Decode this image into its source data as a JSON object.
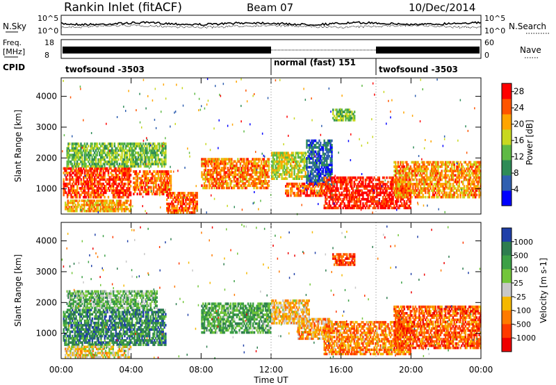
{
  "header": {
    "station": "Rankin Inlet (fitACF)",
    "beam": "Beam 07",
    "date": "10/Dec/2014"
  },
  "top_panels": {
    "nsky_label": "N.Sky",
    "nsearch_label": "N.Search",
    "nsky_ticks": [
      "10^5",
      "10^0"
    ],
    "freq_label_top": "Freq.",
    "freq_label_bottom": "[MHz]",
    "freq_ticks": [
      "18",
      "8"
    ],
    "nave_label": "Nave",
    "nave_ticks": [
      "60",
      "0"
    ],
    "cpid_label": "CPID",
    "cpid_segments": [
      {
        "start": 0,
        "end": 12,
        "label": "twofsound -3503"
      },
      {
        "start": 12,
        "end": 18,
        "label": "normal (fast) 151"
      },
      {
        "start": 18,
        "end": 24,
        "label": "twofsound -3503"
      }
    ]
  },
  "chart_data": [
    {
      "type": "heatmap",
      "name": "Power",
      "xlabel": "Time UT",
      "ylabel": "Slant Range [km]",
      "xlim": [
        0,
        24
      ],
      "ylim": [
        180,
        4600
      ],
      "x_ticks": [
        "00:00",
        "04:00",
        "08:00",
        "12:00",
        "16:00",
        "20:00",
        "00:00"
      ],
      "y_ticks": [
        1000,
        2000,
        3000,
        4000
      ],
      "colorbar": {
        "label": "Power [dB]",
        "range": [
          0,
          30
        ],
        "ticks": [
          4,
          8,
          12,
          16,
          20,
          24,
          28
        ],
        "colors": [
          "#0000ff",
          "#2f5fb0",
          "#2e8b57",
          "#5fba45",
          "#c8d820",
          "#ffa500",
          "#ff5500",
          "#ff0000"
        ]
      },
      "echo_regions": [
        {
          "t": [
            0.1,
            4.0
          ],
          "r": [
            700,
            1700
          ],
          "level": 0.85
        },
        {
          "t": [
            4.1,
            6.3
          ],
          "r": [
            800,
            1600
          ],
          "level": 0.78
        },
        {
          "t": [
            0.3,
            6.0
          ],
          "r": [
            1700,
            2500
          ],
          "level": 0.45
        },
        {
          "t": [
            0.2,
            4.0
          ],
          "r": [
            250,
            650
          ],
          "level": 0.7
        },
        {
          "t": [
            6.0,
            7.8
          ],
          "r": [
            200,
            900
          ],
          "level": 0.8
        },
        {
          "t": [
            8.0,
            11.9
          ],
          "r": [
            1000,
            2000
          ],
          "level": 0.75
        },
        {
          "t": [
            12.0,
            14.0
          ],
          "r": [
            1300,
            2200
          ],
          "level": 0.55
        },
        {
          "t": [
            14.0,
            15.5
          ],
          "r": [
            1100,
            2600
          ],
          "level": 0.2
        },
        {
          "t": [
            12.8,
            15.0
          ],
          "r": [
            750,
            1200
          ],
          "level": 0.8
        },
        {
          "t": [
            15.0,
            20.0
          ],
          "r": [
            350,
            1400
          ],
          "level": 0.92
        },
        {
          "t": [
            19.0,
            24.0
          ],
          "r": [
            700,
            1900
          ],
          "level": 0.72
        },
        {
          "t": [
            15.5,
            16.8
          ],
          "r": [
            3200,
            3600
          ],
          "level": 0.45
        }
      ]
    },
    {
      "type": "heatmap",
      "name": "Velocity",
      "xlabel": "Time UT",
      "ylabel": "Slant Range [km]",
      "xlim": [
        0,
        24
      ],
      "ylim": [
        180,
        4600
      ],
      "x_ticks": [
        "00:00",
        "04:00",
        "08:00",
        "12:00",
        "16:00",
        "20:00",
        "00:00"
      ],
      "y_ticks": [
        1000,
        2000,
        3000,
        4000
      ],
      "colorbar": {
        "label": "Velocity [m s-1]",
        "ticks": [
          "1000",
          "500",
          "100",
          "25",
          "-25",
          "-100",
          "-500",
          "-1000"
        ],
        "colors": [
          "#1f3fa8",
          "#2e7d4f",
          "#3ca046",
          "#73c63a",
          "#c8c8c8",
          "#f5b800",
          "#ff7a00",
          "#ff3a00",
          "#ee0000"
        ]
      },
      "echo_regions": [
        {
          "t": [
            0.1,
            6.0
          ],
          "r": [
            600,
            1800
          ],
          "level": 0.2
        },
        {
          "t": [
            0.3,
            5.5
          ],
          "r": [
            1800,
            2400
          ],
          "level": 0.35
        },
        {
          "t": [
            0.2,
            4.0
          ],
          "r": [
            200,
            600
          ],
          "level": 0.55
        },
        {
          "t": [
            8.0,
            12.0
          ],
          "r": [
            1000,
            2000
          ],
          "level": 0.3
        },
        {
          "t": [
            12.0,
            14.2
          ],
          "r": [
            1300,
            2100
          ],
          "level": 0.6
        },
        {
          "t": [
            13.5,
            15.5
          ],
          "r": [
            800,
            1500
          ],
          "level": 0.65
        },
        {
          "t": [
            15.0,
            20.0
          ],
          "r": [
            300,
            1400
          ],
          "level": 0.72
        },
        {
          "t": [
            19.0,
            24.0
          ],
          "r": [
            500,
            1900
          ],
          "level": 0.78
        },
        {
          "t": [
            15.5,
            16.8
          ],
          "r": [
            3200,
            3600
          ],
          "level": 0.85
        }
      ]
    }
  ]
}
